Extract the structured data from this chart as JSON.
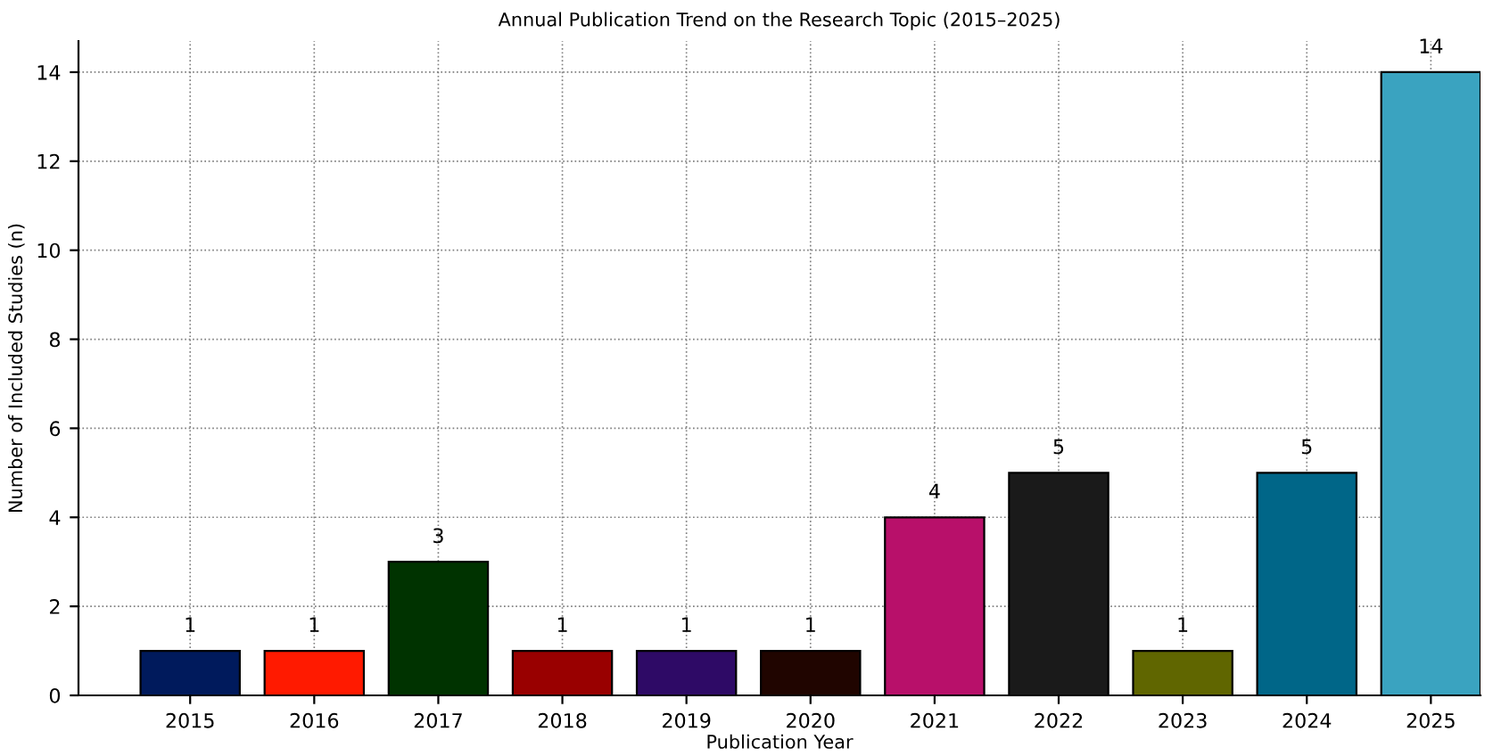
{
  "chart_data": {
    "type": "bar",
    "title": "Annual Publication Trend on the Research Topic (2015–2025)",
    "xlabel": "Publication Year",
    "ylabel": "Number of Included Studies (n)",
    "categories": [
      "2015",
      "2016",
      "2017",
      "2018",
      "2019",
      "2020",
      "2021",
      "2022",
      "2023",
      "2024",
      "2025"
    ],
    "values": [
      1,
      1,
      3,
      1,
      1,
      1,
      4,
      5,
      1,
      5,
      14
    ],
    "colors": [
      "#001a5c",
      "#ff1a00",
      "#003300",
      "#990000",
      "#2e0a66",
      "#200500",
      "#b8106a",
      "#1a1a1a",
      "#606600",
      "#006688",
      "#3aa3c0"
    ],
    "ylim": [
      0,
      14.7
    ],
    "yticks": [
      0,
      2,
      4,
      6,
      8,
      10,
      12,
      14
    ],
    "grid": true,
    "data_labels": true
  }
}
